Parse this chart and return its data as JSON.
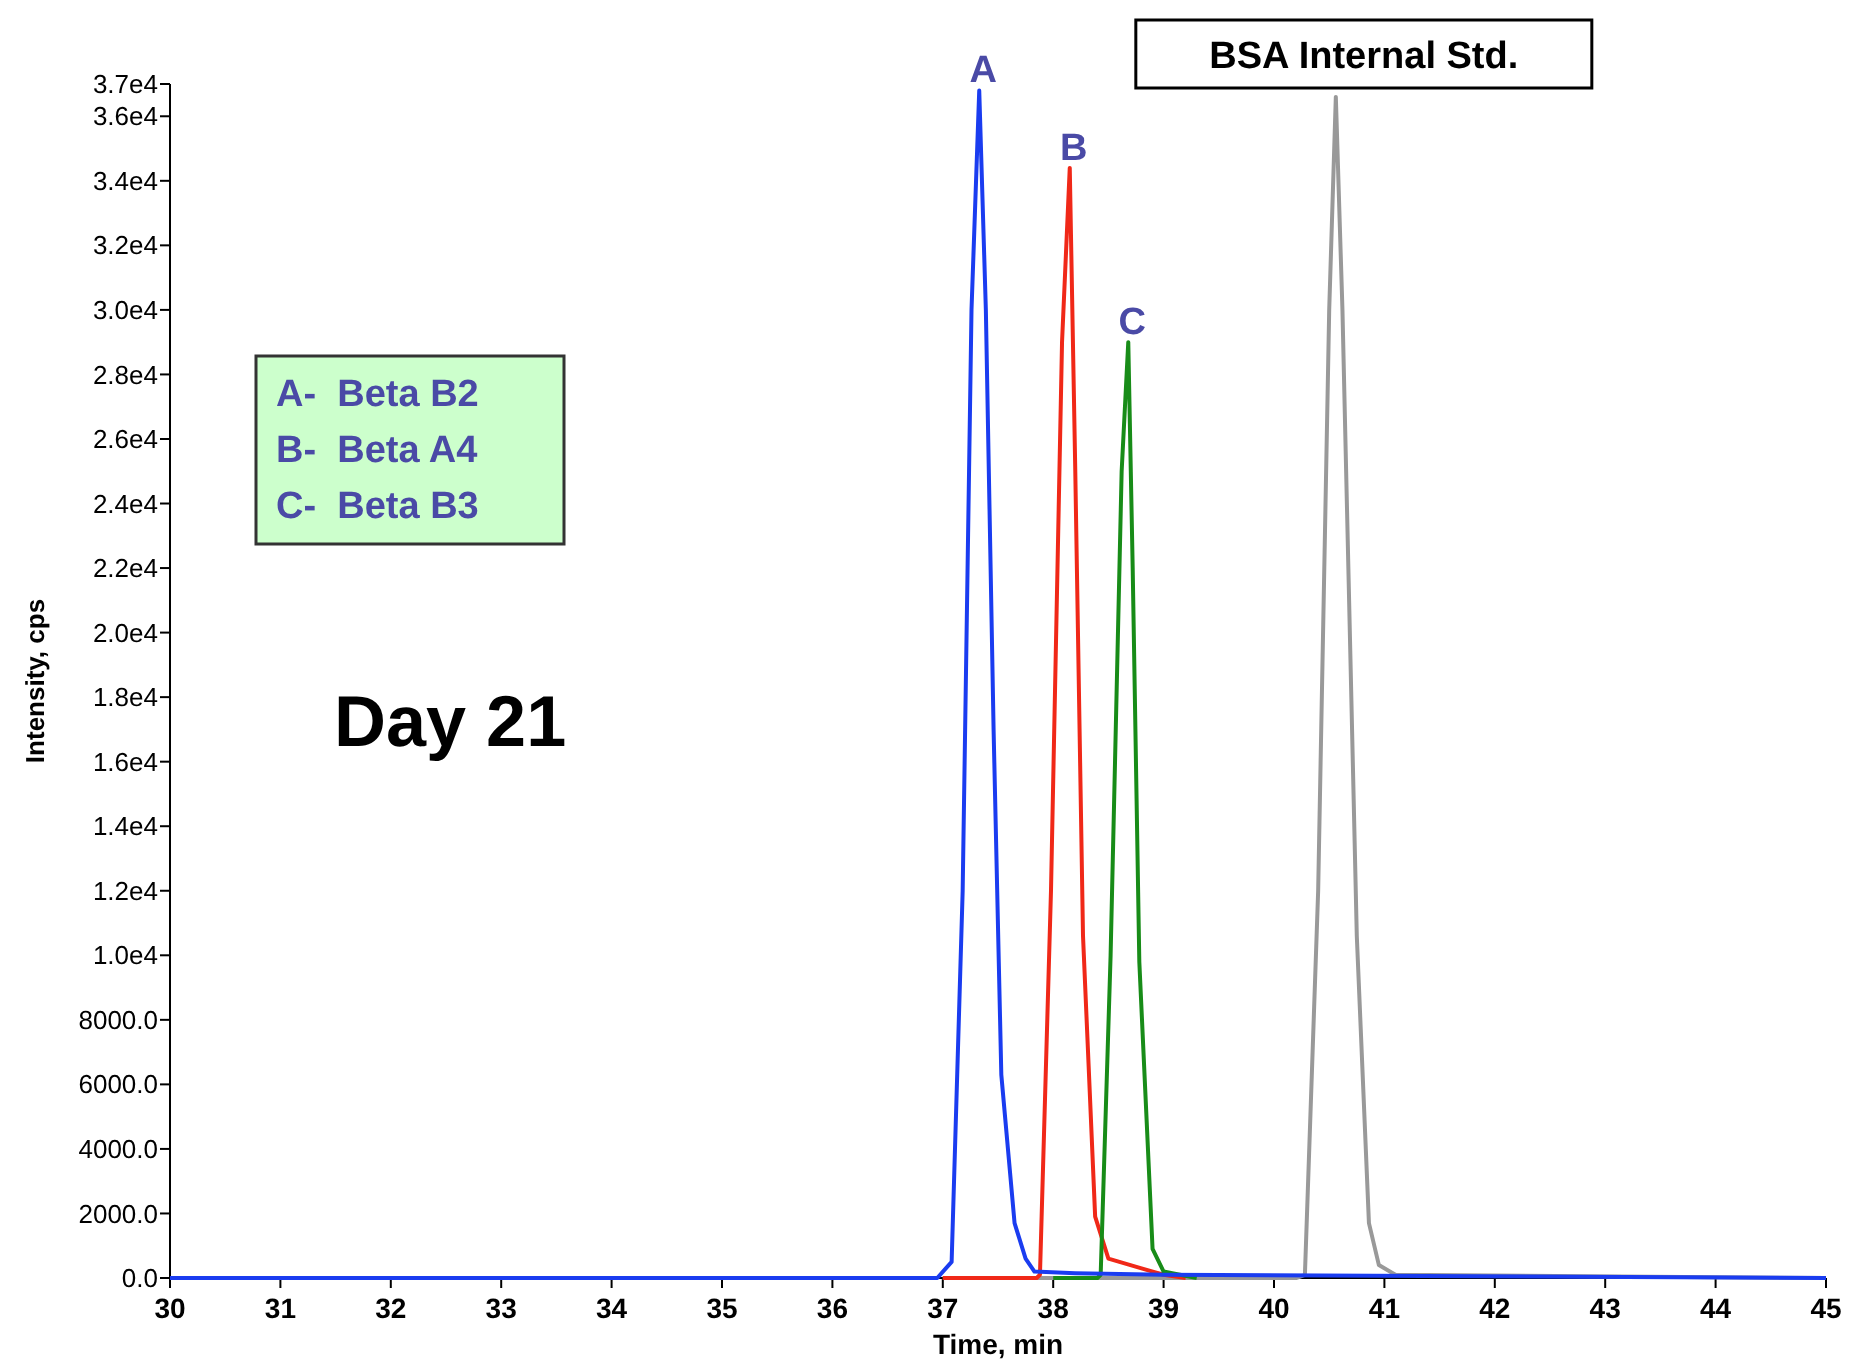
{
  "chart_data": {
    "type": "line",
    "xlabel": "Time, min",
    "ylabel": "Intensity, cps",
    "xlim": [
      30,
      45
    ],
    "xticks": [
      30,
      31,
      32,
      33,
      34,
      35,
      36,
      37,
      38,
      39,
      40,
      41,
      42,
      43,
      44,
      45
    ],
    "ylim": [
      0,
      37000
    ],
    "yticks": [
      {
        "value": 0,
        "label": "0.0"
      },
      {
        "value": 2000,
        "label": "2000.0"
      },
      {
        "value": 4000,
        "label": "4000.0"
      },
      {
        "value": 6000,
        "label": "6000.0"
      },
      {
        "value": 8000,
        "label": "8000.0"
      },
      {
        "value": 10000,
        "label": "1.0e4"
      },
      {
        "value": 12000,
        "label": "1.2e4"
      },
      {
        "value": 14000,
        "label": "1.4e4"
      },
      {
        "value": 16000,
        "label": "1.6e4"
      },
      {
        "value": 18000,
        "label": "1.8e4"
      },
      {
        "value": 20000,
        "label": "2.0e4"
      },
      {
        "value": 22000,
        "label": "2.2e4"
      },
      {
        "value": 24000,
        "label": "2.4e4"
      },
      {
        "value": 26000,
        "label": "2.6e4"
      },
      {
        "value": 28000,
        "label": "2.8e4"
      },
      {
        "value": 30000,
        "label": "3.0e4"
      },
      {
        "value": 32000,
        "label": "3.2e4"
      },
      {
        "value": 34000,
        "label": "3.4e4"
      },
      {
        "value": 36000,
        "label": "3.6e4"
      },
      {
        "value": 37000,
        "label": "3.7e4"
      }
    ],
    "grid": false,
    "marker": "none",
    "line_style": "solid",
    "series": [
      {
        "name": "BSA Internal Std.",
        "color": "#999999",
        "x": [
          37,
          40.2,
          40.28,
          40.4,
          40.5,
          40.56,
          40.62,
          40.75,
          40.86,
          40.95,
          41.1,
          45
        ],
        "values": [
          0,
          0,
          100,
          12000,
          30000,
          36600,
          30000,
          10600,
          1700,
          400,
          100,
          0
        ]
      },
      {
        "name": "B",
        "color": "#f02818",
        "x": [
          37,
          37.85,
          37.88,
          37.98,
          38.08,
          38.15,
          38.2,
          38.27,
          38.38,
          38.5,
          38.6,
          38.8,
          39.0,
          39.2
        ],
        "values": [
          0,
          0,
          100,
          12000,
          29000,
          34400,
          25000,
          10600,
          1900,
          600,
          500,
          300,
          100,
          0
        ]
      },
      {
        "name": "C",
        "color": "#188c18",
        "x": [
          38,
          38.4,
          38.43,
          38.52,
          38.62,
          38.68,
          38.72,
          38.78,
          38.9,
          39.0,
          39.3
        ],
        "values": [
          0,
          0,
          100,
          10000,
          25000,
          29000,
          22000,
          9800,
          900,
          200,
          0
        ]
      },
      {
        "name": "A",
        "color": "#1a3cf0",
        "x": [
          30,
          36.95,
          37.08,
          37.18,
          37.26,
          37.33,
          37.39,
          37.46,
          37.53,
          37.65,
          37.75,
          37.83,
          38.2,
          39.0,
          45
        ],
        "values": [
          0,
          0,
          500,
          12000,
          30000,
          36800,
          30000,
          17000,
          6300,
          1700,
          600,
          200,
          150,
          100,
          0
        ]
      }
    ],
    "annotations": [
      "A-  Beta B2",
      "B-  Beta A4",
      "C-  Beta B3",
      "Day 21"
    ]
  }
}
